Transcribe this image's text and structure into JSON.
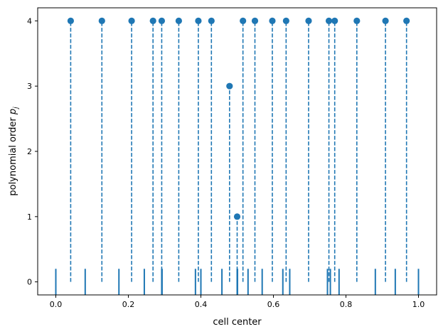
{
  "chart_data": {
    "type": "scatter",
    "title": "",
    "xlabel": "cell center",
    "ylabel_main": "polynomial order ",
    "ylabel_italic": "p",
    "ylabel_sub": "j",
    "xlim": [
      -0.05,
      1.05
    ],
    "ylim": [
      -0.2,
      4.2
    ],
    "x_ticks": [
      0.0,
      0.2,
      0.4,
      0.6,
      0.8,
      1.0
    ],
    "x_tick_labels": [
      "0.0",
      "0.2",
      "0.4",
      "0.6",
      "0.8",
      "1.0"
    ],
    "y_ticks": [
      0,
      1,
      2,
      3,
      4
    ],
    "y_tick_labels": [
      "0",
      "1",
      "2",
      "3",
      "4"
    ],
    "grid": false,
    "color": "#1f77b4",
    "series": [
      {
        "x": [
          0.041,
          0.127,
          0.209,
          0.268,
          0.292,
          0.339,
          0.393,
          0.429,
          0.479,
          0.5,
          0.516,
          0.549,
          0.597,
          0.635,
          0.697,
          0.753,
          0.769,
          0.83,
          0.909,
          0.967
        ],
        "y": [
          4,
          4,
          4,
          4,
          4,
          4,
          4,
          4,
          3,
          1,
          4,
          4,
          4,
          4,
          4,
          4,
          4,
          4,
          4,
          4
        ]
      }
    ],
    "cell_edges": [
      0.0,
      0.081,
      0.174,
      0.244,
      0.292,
      0.293,
      0.385,
      0.4,
      0.458,
      0.5,
      0.501,
      0.53,
      0.569,
      0.626,
      0.645,
      0.749,
      0.757,
      0.781,
      0.881,
      0.936,
      1.0
    ]
  }
}
